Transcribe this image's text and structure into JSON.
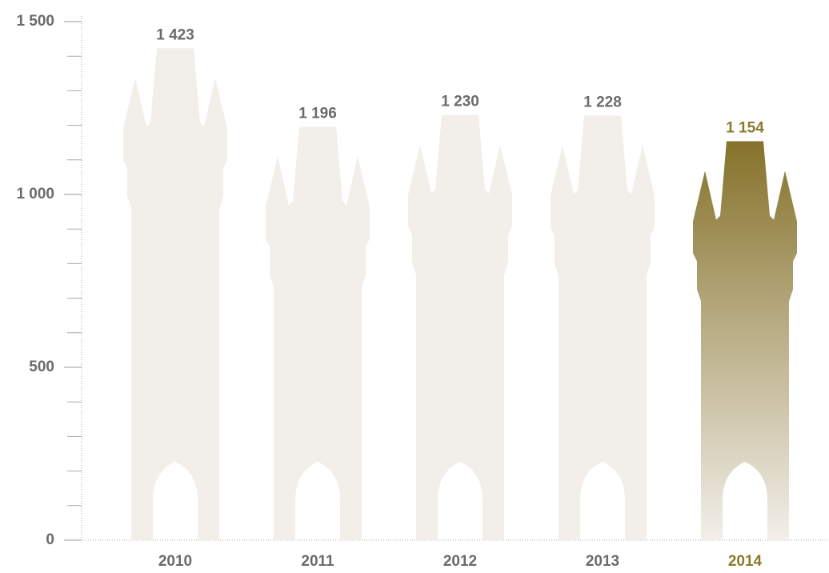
{
  "chart_data": {
    "type": "tower-bar",
    "categories": [
      "2010",
      "2011",
      "2012",
      "2013",
      "2014"
    ],
    "values": [
      1423,
      1196,
      1230,
      1228,
      1154
    ],
    "value_labels": [
      "1 423",
      "1 196",
      "1 230",
      "1 228",
      "1 154"
    ],
    "colors": [
      "#f2efea",
      "#f2efea",
      "#f2efea",
      "#f2efea",
      "#86722b"
    ],
    "label_colors": [
      "#6b6b6b",
      "#6b6b6b",
      "#6b6b6b",
      "#6b6b6b",
      "#8b7a2e"
    ],
    "ylim": [
      0,
      1500
    ],
    "yticks": [
      0,
      500,
      {
        "value": 1000,
        "label": "1 000"
      },
      {
        "value": 1500,
        "label": "1 500"
      }
    ],
    "minor_yticks": [
      100,
      200,
      300,
      400,
      600,
      700,
      800,
      900,
      1100,
      1200,
      1300,
      1400
    ]
  }
}
